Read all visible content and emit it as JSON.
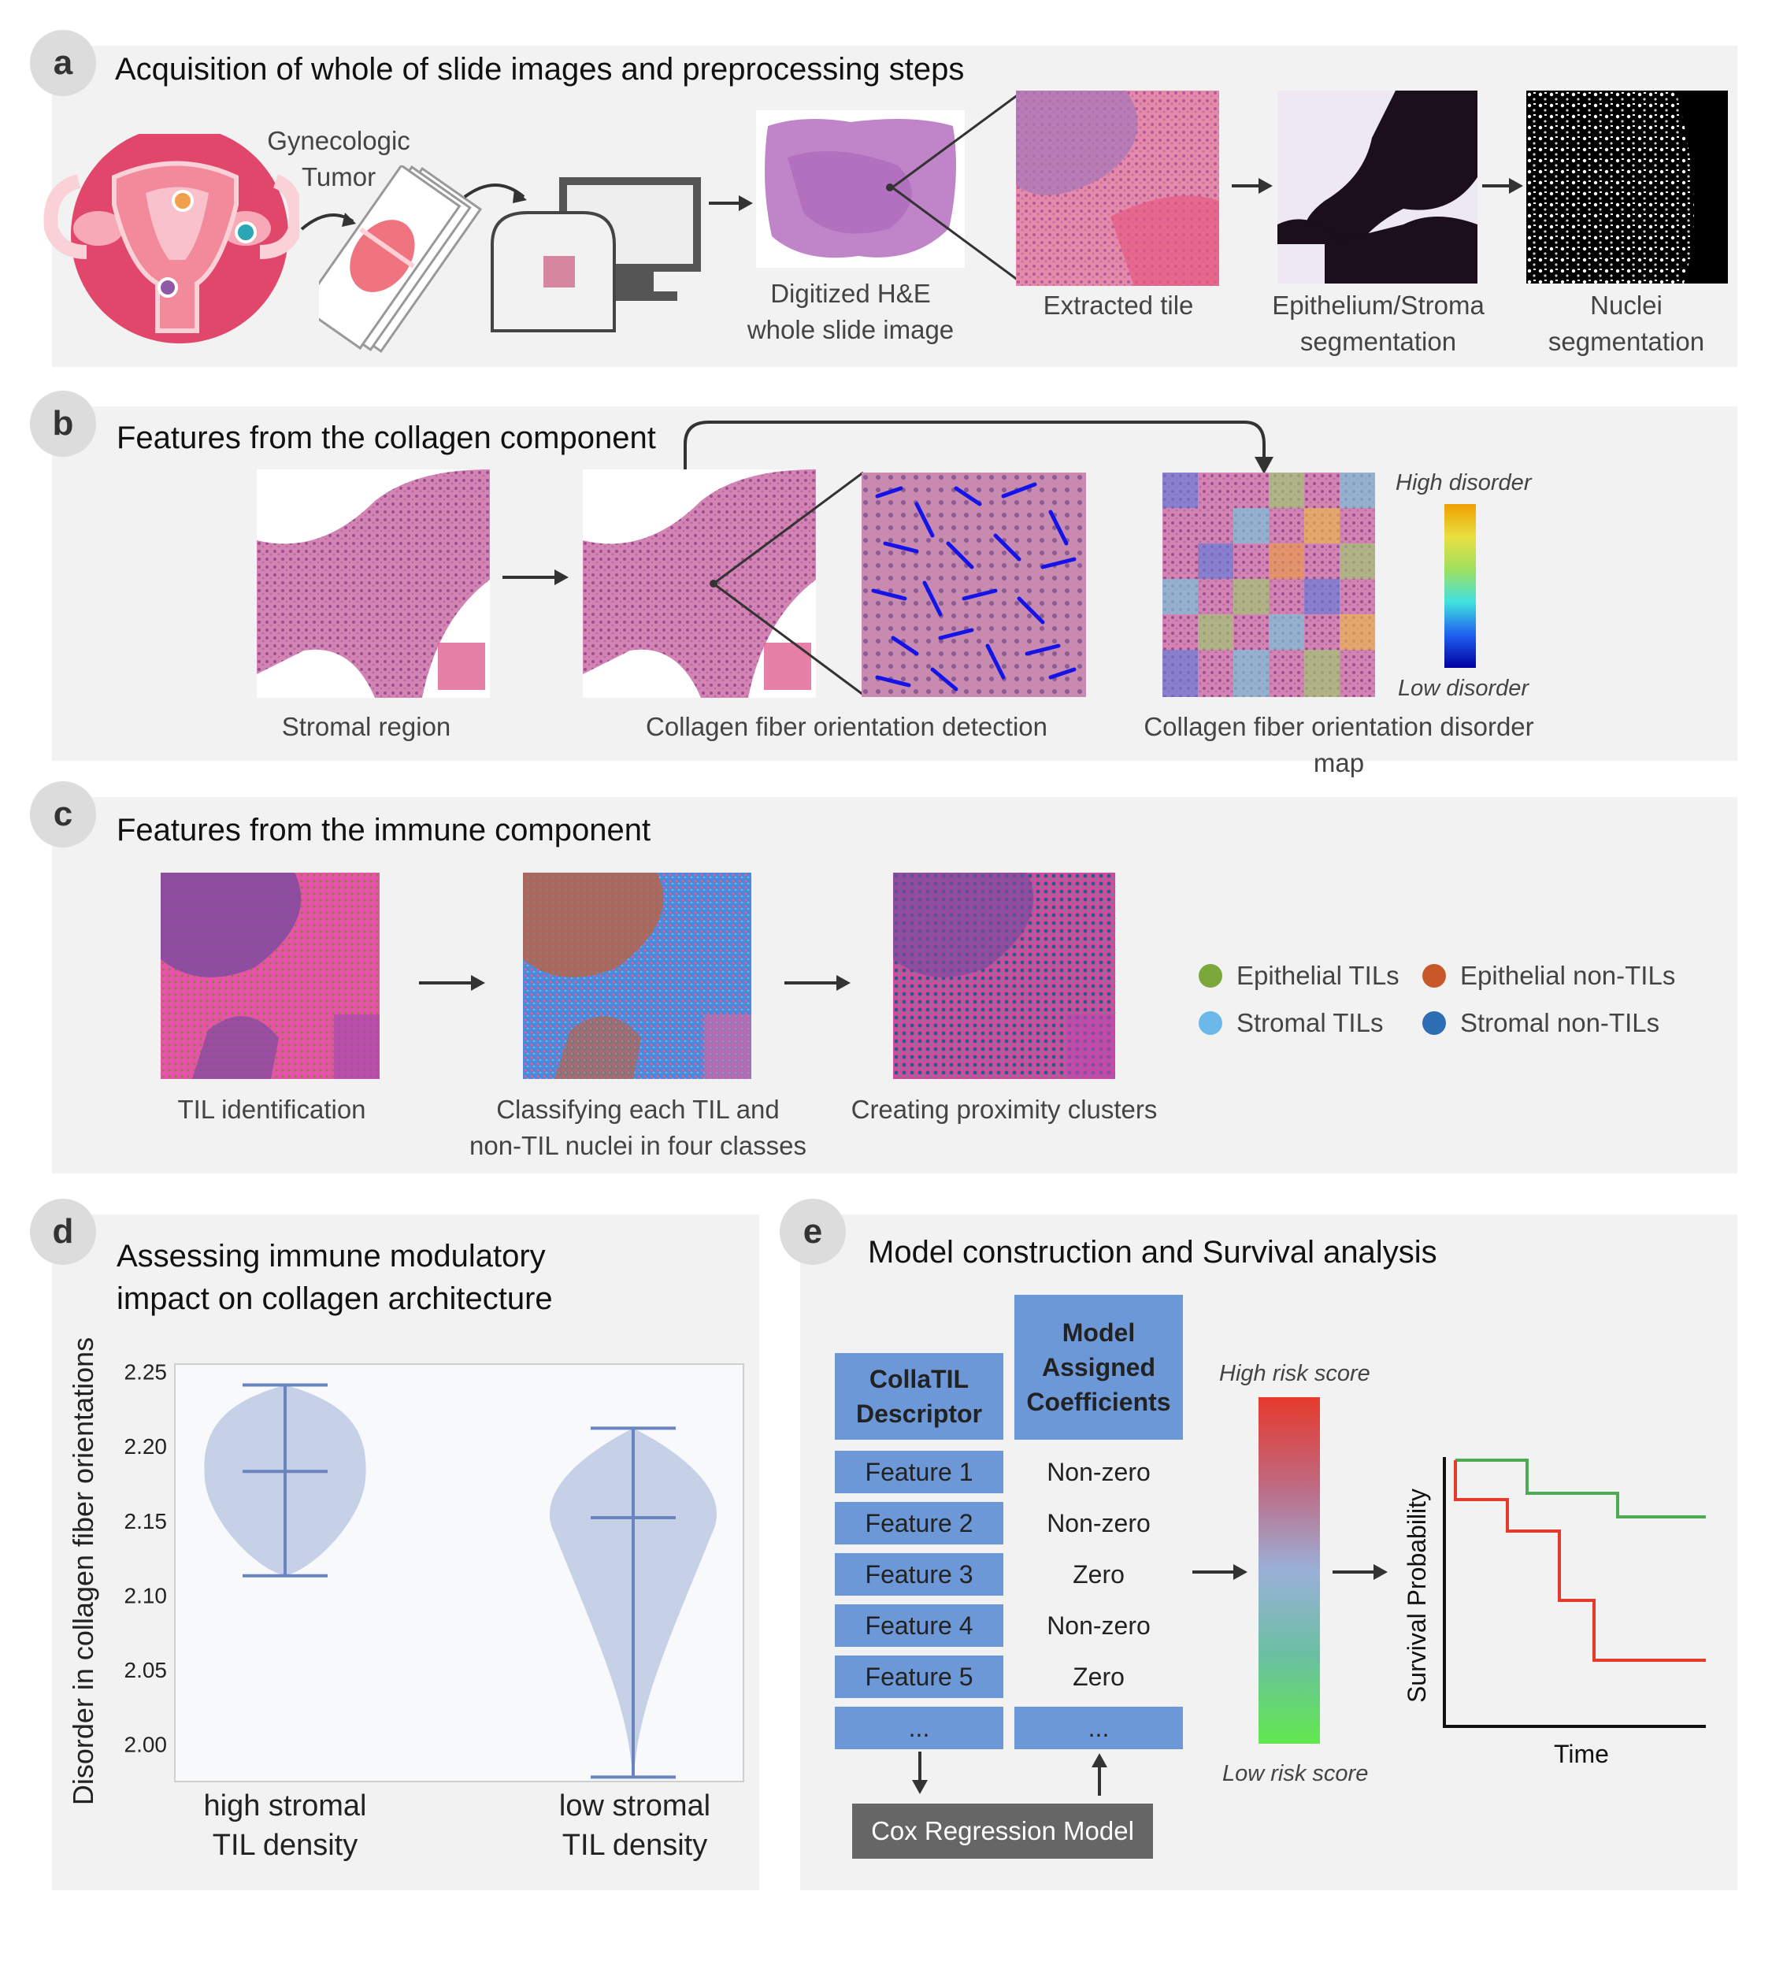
{
  "panel_a": {
    "badge": "a",
    "title": "Acquisition of whole of slide images and preprocessing steps",
    "tumor_label": "Gynecologic\nTumor",
    "wsi_label": "Digitized H&E\nwhole slide image",
    "tile_label": "Extracted tile",
    "seg_label": "Epithelium/Stroma\nsegmentation",
    "nuclei_label": "Nuclei\nsegmentation"
  },
  "panel_b": {
    "badge": "b",
    "title": "Features from the collagen component",
    "stromal_label": "Stromal region",
    "detection_label": "Collagen fiber orientation detection",
    "map_label": "Collagen fiber orientation disorder map",
    "high_label": "High disorder",
    "low_label": "Low disorder"
  },
  "panel_c": {
    "badge": "c",
    "title": "Features from the immune component",
    "til_label": "TIL identification",
    "classify_label": "Classifying each TIL and\nnon-TIL nuclei in four classes",
    "cluster_label": "Creating proximity clusters",
    "legend": [
      {
        "label": "Epithelial TILs",
        "color": "#7aa83a"
      },
      {
        "label": "Epithelial non-TILs",
        "color": "#c8582a"
      },
      {
        "label": "Stromal TILs",
        "color": "#6cb8e8"
      },
      {
        "label": "Stromal non-TILs",
        "color": "#2d6db3"
      }
    ]
  },
  "panel_d": {
    "badge": "d",
    "title": "Assessing immune modulatory\nimpact on collagen architecture"
  },
  "panel_e": {
    "badge": "e",
    "title": "Model construction and Survival analysis",
    "col1_header": "CollaTIL\nDescriptor",
    "col2_header": "Model\nAssigned\nCoefficients",
    "rows": [
      {
        "feature": "Feature 1",
        "coef": "Non-zero",
        "kind": "red"
      },
      {
        "feature": "Feature 2",
        "coef": "Non-zero",
        "kind": "red"
      },
      {
        "feature": "Feature 3",
        "coef": "Zero",
        "kind": "green"
      },
      {
        "feature": "Feature 4",
        "coef": "Non-zero",
        "kind": "red"
      },
      {
        "feature": "Feature 5",
        "coef": "Zero",
        "kind": "green"
      },
      {
        "feature": "...",
        "coef": "...",
        "kind": "blue"
      }
    ],
    "cox_label": "Cox Regression Model",
    "high_risk": "High risk score",
    "low_risk": "Low risk score",
    "km_ylabel": "Survival Probability",
    "km_xlabel": "Time",
    "colors": {
      "high": "#e63a2c",
      "low": "#4faa55",
      "blue": "#6d98d8"
    }
  },
  "chart_data": {
    "type": "violin",
    "ylabel": "Disorder in collagen fiber orientations",
    "yticks": [
      2.0,
      2.05,
      2.1,
      2.15,
      2.2,
      2.25
    ],
    "ylim": [
      1.975,
      2.255
    ],
    "categories": [
      "high stromal\nTIL density",
      "low stromal\nTIL density"
    ],
    "series": [
      {
        "min": 2.113,
        "median": 2.183,
        "max": 2.241
      },
      {
        "min": 1.978,
        "median": 2.152,
        "max": 2.212
      }
    ],
    "grid": false
  }
}
